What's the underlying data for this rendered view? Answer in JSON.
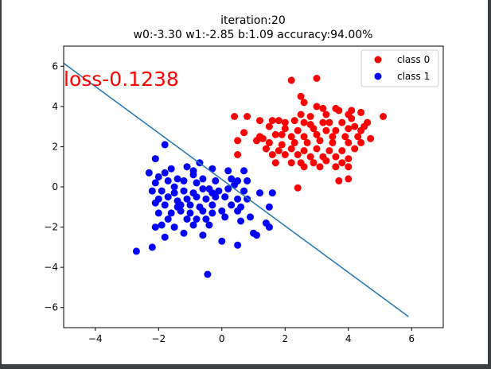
{
  "chart_data": {
    "type": "scatter",
    "title_line1": "iteration:20",
    "title_line2": "w0:-3.30 w1:-2.85 b:1.09 accuracy:94.00%",
    "annotation": "loss-0.1238",
    "xlim": [
      -5,
      7
    ],
    "ylim": [
      -7,
      7
    ],
    "xticks": [
      -4,
      -2,
      0,
      2,
      4,
      6
    ],
    "yticks": [
      -6,
      -4,
      -2,
      0,
      2,
      4,
      6
    ],
    "xtick_labels": [
      "−4",
      "−2",
      "0",
      "2",
      "4",
      "6"
    ],
    "ytick_labels": [
      "−6",
      "−4",
      "−2",
      "0",
      "2",
      "4",
      "6"
    ],
    "legend_position": "top-right",
    "colors": {
      "class0": "#ff0000",
      "class1": "#0000ff",
      "line": "#1f77b4",
      "annotation": "#ff0000"
    },
    "decision_boundary": {
      "x": [
        -5.0,
        5.9
      ],
      "y": [
        6.15,
        -6.45
      ]
    },
    "series": [
      {
        "name": "class 0",
        "color": "#ff0000",
        "points": [
          [
            2.2,
            5.3
          ],
          [
            3.0,
            5.4
          ],
          [
            2.6,
            4.2
          ],
          [
            2.5,
            4.5
          ],
          [
            3.0,
            4.0
          ],
          [
            3.2,
            3.9
          ],
          [
            3.6,
            3.9
          ],
          [
            3.7,
            3.8
          ],
          [
            4.1,
            3.8
          ],
          [
            4.0,
            3.6
          ],
          [
            4.4,
            3.7
          ],
          [
            4.6,
            3.2
          ],
          [
            5.1,
            3.5
          ],
          [
            0.4,
            3.5
          ],
          [
            0.8,
            3.5
          ],
          [
            1.2,
            3.3
          ],
          [
            1.6,
            3.3
          ],
          [
            1.8,
            3.3
          ],
          [
            2.0,
            3.2
          ],
          [
            2.3,
            3.3
          ],
          [
            2.6,
            3.2
          ],
          [
            2.8,
            3.1
          ],
          [
            3.2,
            3.2
          ],
          [
            3.4,
            3.2
          ],
          [
            3.8,
            3.2
          ],
          [
            4.2,
            3.0
          ],
          [
            4.5,
            3.0
          ],
          [
            1.5,
            3.0
          ],
          [
            2.0,
            2.9
          ],
          [
            2.4,
            2.8
          ],
          [
            2.9,
            2.9
          ],
          [
            3.3,
            2.8
          ],
          [
            3.6,
            2.8
          ],
          [
            4.0,
            2.9
          ],
          [
            4.4,
            2.8
          ],
          [
            0.7,
            2.7
          ],
          [
            1.2,
            2.5
          ],
          [
            1.7,
            2.6
          ],
          [
            2.2,
            2.5
          ],
          [
            2.6,
            2.5
          ],
          [
            3.0,
            2.6
          ],
          [
            3.5,
            2.5
          ],
          [
            3.9,
            2.5
          ],
          [
            4.3,
            2.5
          ],
          [
            4.7,
            2.4
          ],
          [
            0.5,
            2.3
          ],
          [
            1.1,
            2.3
          ],
          [
            1.5,
            2.2
          ],
          [
            1.9,
            2.1
          ],
          [
            2.3,
            2.2
          ],
          [
            2.7,
            2.2
          ],
          [
            3.1,
            2.3
          ],
          [
            3.5,
            2.2
          ],
          [
            4.0,
            2.2
          ],
          [
            4.4,
            2.2
          ],
          [
            1.4,
            1.9
          ],
          [
            1.8,
            1.8
          ],
          [
            2.2,
            1.9
          ],
          [
            2.6,
            1.8
          ],
          [
            3.0,
            1.9
          ],
          [
            3.4,
            1.8
          ],
          [
            3.8,
            1.8
          ],
          [
            4.2,
            1.9
          ],
          [
            0.5,
            1.6
          ],
          [
            1.6,
            1.6
          ],
          [
            2.0,
            1.6
          ],
          [
            2.4,
            1.6
          ],
          [
            2.8,
            1.5
          ],
          [
            3.2,
            1.5
          ],
          [
            3.6,
            1.5
          ],
          [
            4.0,
            1.4
          ],
          [
            1.7,
            1.2
          ],
          [
            2.2,
            1.2
          ],
          [
            2.5,
            1.2
          ],
          [
            2.9,
            1.2
          ],
          [
            3.3,
            1.3
          ],
          [
            3.8,
            1.2
          ],
          [
            2.6,
            1.0
          ],
          [
            3.1,
            1.0
          ],
          [
            3.6,
            1.0
          ],
          [
            4.0,
            1.0
          ],
          [
            2.4,
            -0.05
          ],
          [
            3.7,
            0.3
          ],
          [
            4.0,
            0.4
          ],
          [
            1.3,
            2.4
          ],
          [
            2.5,
            3.6
          ],
          [
            2.8,
            3.5
          ],
          [
            3.3,
            3.6
          ],
          [
            4.1,
            3.4
          ],
          [
            1.9,
            2.6
          ]
        ]
      },
      {
        "name": "class 1",
        "color": "#0000ff",
        "points": [
          [
            -1.8,
            2.1
          ],
          [
            -2.1,
            1.4
          ],
          [
            -2.3,
            0.7
          ],
          [
            -2.0,
            0.5
          ],
          [
            -1.6,
            0.9
          ],
          [
            -1.1,
            1.0
          ],
          [
            -0.9,
            0.8
          ],
          [
            -0.7,
            1.2
          ],
          [
            -0.3,
            0.9
          ],
          [
            0.2,
            0.8
          ],
          [
            0.7,
            0.8
          ],
          [
            -2.1,
            0.2
          ],
          [
            -1.7,
            0.3
          ],
          [
            -1.4,
            0.4
          ],
          [
            -1.2,
            0.3
          ],
          [
            -0.8,
            0.2
          ],
          [
            -0.6,
            0.4
          ],
          [
            -0.2,
            0.3
          ],
          [
            0.3,
            0.4
          ],
          [
            0.5,
            0.3
          ],
          [
            -2.2,
            -0.2
          ],
          [
            -1.9,
            -0.2
          ],
          [
            -1.5,
            -0.3
          ],
          [
            -1.2,
            -0.2
          ],
          [
            -0.9,
            -0.3
          ],
          [
            -0.6,
            -0.1
          ],
          [
            -0.4,
            -0.1
          ],
          [
            -0.1,
            -0.2
          ],
          [
            0.2,
            -0.1
          ],
          [
            0.7,
            -0.2
          ],
          [
            1.2,
            -0.3
          ],
          [
            1.6,
            -0.3
          ],
          [
            -2.0,
            -0.6
          ],
          [
            -1.7,
            -0.5
          ],
          [
            -1.4,
            -0.7
          ],
          [
            -1.1,
            -0.6
          ],
          [
            -0.8,
            -0.5
          ],
          [
            -0.5,
            -0.6
          ],
          [
            -0.2,
            -0.5
          ],
          [
            0.1,
            -0.5
          ],
          [
            0.5,
            -0.6
          ],
          [
            0.8,
            -0.6
          ],
          [
            -1.8,
            -0.9
          ],
          [
            -1.4,
            -1.0
          ],
          [
            -1.0,
            -0.9
          ],
          [
            -0.7,
            -1.0
          ],
          [
            -0.3,
            -0.9
          ],
          [
            0.3,
            -0.9
          ],
          [
            0.6,
            -1.0
          ],
          [
            1.5,
            -1.0
          ],
          [
            -2.0,
            -1.3
          ],
          [
            -1.6,
            -1.3
          ],
          [
            -1.3,
            -1.2
          ],
          [
            -1.0,
            -1.3
          ],
          [
            -0.6,
            -1.2
          ],
          [
            -0.3,
            -1.3
          ],
          [
            0.0,
            -1.2
          ],
          [
            0.5,
            -1.2
          ],
          [
            -1.7,
            -1.6
          ],
          [
            -1.1,
            -1.6
          ],
          [
            -0.5,
            -1.6
          ],
          [
            0.1,
            -1.5
          ],
          [
            0.9,
            -1.5
          ],
          [
            -2.1,
            -2.0
          ],
          [
            -1.9,
            -1.9
          ],
          [
            -1.5,
            -2.0
          ],
          [
            -0.9,
            -1.9
          ],
          [
            -0.4,
            -1.9
          ],
          [
            0.6,
            -1.7
          ],
          [
            1.4,
            -1.8
          ],
          [
            1.5,
            -2.0
          ],
          [
            -1.8,
            -2.5
          ],
          [
            -1.2,
            -2.3
          ],
          [
            -0.6,
            -2.4
          ],
          [
            0.0,
            -2.7
          ],
          [
            1.0,
            -2.3
          ],
          [
            1.1,
            -2.4
          ],
          [
            -2.7,
            -3.2
          ],
          [
            -2.2,
            -3.0
          ],
          [
            -0.45,
            -4.35
          ],
          [
            0.5,
            -2.9
          ],
          [
            0.8,
            0.3
          ],
          [
            -0.9,
            0.6
          ],
          [
            -1.5,
            0.0
          ],
          [
            -0.3,
            -0.3
          ],
          [
            0.4,
            0.1
          ],
          [
            -1.8,
            0.7
          ],
          [
            -0.8,
            -1.6
          ],
          [
            -1.3,
            -0.9
          ],
          [
            -2.1,
            -0.8
          ]
        ]
      }
    ]
  }
}
